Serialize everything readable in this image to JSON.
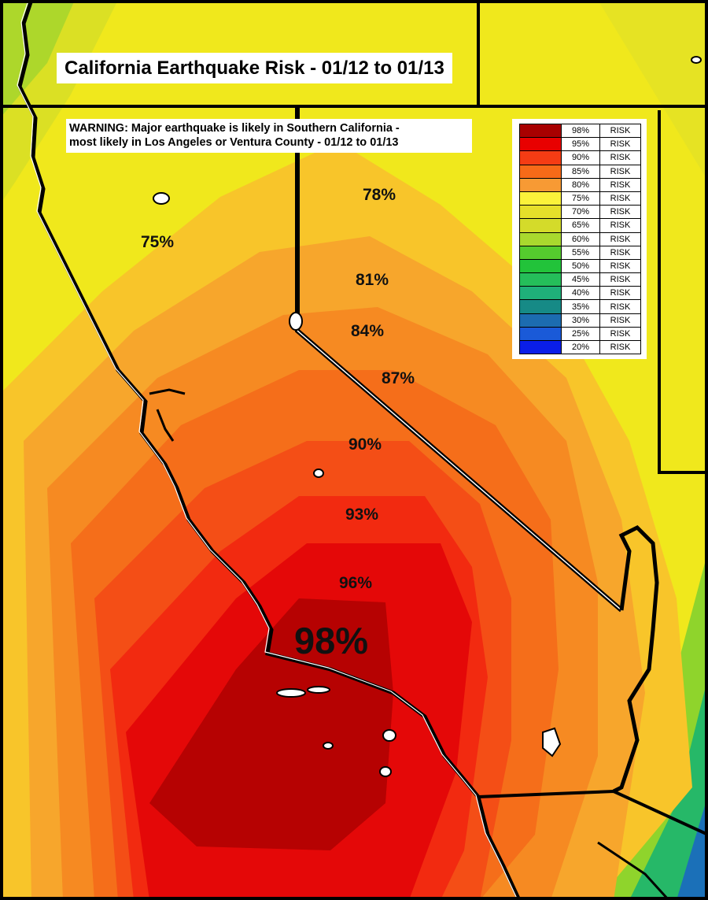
{
  "title": "California Earthquake Risk - 01/12 to 01/13",
  "warning": {
    "line1": "WARNING: Major earthquake is likely in Southern California -",
    "line2": "most likely in Los Angeles or Ventura County - 01/12 to 01/13"
  },
  "contour_labels": [
    {
      "id": "nw",
      "text": "75%"
    },
    {
      "id": "ne",
      "text": "78%"
    },
    {
      "id": "n81",
      "text": "81%"
    },
    {
      "id": "n84",
      "text": "84%"
    },
    {
      "id": "n87",
      "text": "87%"
    },
    {
      "id": "n90",
      "text": "90%"
    },
    {
      "id": "n93",
      "text": "93%"
    },
    {
      "id": "n96",
      "text": "96%"
    },
    {
      "id": "n98",
      "text": "98%"
    }
  ],
  "legend": [
    {
      "value": "98%",
      "label": "RISK",
      "color": "#a80000"
    },
    {
      "value": "95%",
      "label": "RISK",
      "color": "#e80000"
    },
    {
      "value": "90%",
      "label": "RISK",
      "color": "#f53c14"
    },
    {
      "value": "85%",
      "label": "RISK",
      "color": "#f76a18"
    },
    {
      "value": "80%",
      "label": "RISK",
      "color": "#f79a34"
    },
    {
      "value": "75%",
      "label": "RISK",
      "color": "#fbf23a"
    },
    {
      "value": "70%",
      "label": "RISK",
      "color": "#e6df2a"
    },
    {
      "value": "65%",
      "label": "RISK",
      "color": "#d4db2a"
    },
    {
      "value": "60%",
      "label": "RISK",
      "color": "#a9d92e"
    },
    {
      "value": "55%",
      "label": "RISK",
      "color": "#55cc2e"
    },
    {
      "value": "50%",
      "label": "RISK",
      "color": "#22c33a"
    },
    {
      "value": "45%",
      "label": "RISK",
      "color": "#25be5a"
    },
    {
      "value": "40%",
      "label": "RISK",
      "color": "#1fb079"
    },
    {
      "value": "35%",
      "label": "RISK",
      "color": "#168a86"
    },
    {
      "value": "30%",
      "label": "RISK",
      "color": "#1c6cb0"
    },
    {
      "value": "25%",
      "label": "RISK",
      "color": "#1a5ad8"
    },
    {
      "value": "20%",
      "label": "RISK",
      "color": "#0a1ee8"
    }
  ]
}
